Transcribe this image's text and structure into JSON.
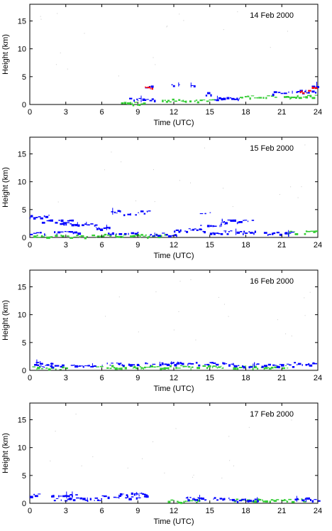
{
  "chart_data": [
    {
      "type": "scatter",
      "title": "14 Feb 2000",
      "xlabel": "Time (UTC)",
      "ylabel": "Height (km)",
      "xlim": [
        0,
        24
      ],
      "ylim": [
        0,
        18
      ],
      "xticks": [
        0,
        3,
        6,
        9,
        12,
        15,
        18,
        21,
        24
      ],
      "yticks": [
        0,
        5,
        10,
        15
      ],
      "colors": {
        "blue": "#0000ff",
        "green": "#33cc33",
        "red": "#ff0000"
      },
      "blue_segments": [
        {
          "t0": 7.8,
          "t1": 10.4,
          "h": 1.0
        },
        {
          "t0": 9.6,
          "t1": 10.3,
          "h": 3.3
        },
        {
          "t0": 11.8,
          "t1": 12.5,
          "h": 3.6
        },
        {
          "t0": 13.4,
          "t1": 13.7,
          "h": 3.5
        },
        {
          "t0": 14.6,
          "t1": 15.1,
          "h": 2.0
        },
        {
          "t0": 15.2,
          "t1": 17.5,
          "h": 1.1
        },
        {
          "t0": 20.2,
          "t1": 22.0,
          "h": 2.2
        },
        {
          "t0": 22.2,
          "t1": 23.8,
          "h": 2.4
        },
        {
          "t0": 23.5,
          "t1": 24.0,
          "h": 3.5
        }
      ],
      "green_segments": [
        {
          "t0": 7.6,
          "t1": 9.5,
          "h": 0.3
        },
        {
          "t0": 11.0,
          "t1": 15.5,
          "h": 0.8
        },
        {
          "t0": 17.5,
          "t1": 23.8,
          "h": 1.5
        }
      ],
      "red_segments": [
        {
          "t0": 9.6,
          "t1": 10.2,
          "h": 3.0
        },
        {
          "t0": 22.5,
          "t1": 23.3,
          "h": 2.4
        },
        {
          "t0": 23.5,
          "t1": 24.0,
          "h": 3.2
        }
      ]
    },
    {
      "type": "scatter",
      "title": "15 Feb 2000",
      "xlabel": "Time (UTC)",
      "ylabel": "Height (km)",
      "xlim": [
        0,
        24
      ],
      "ylim": [
        0,
        18
      ],
      "xticks": [
        0,
        3,
        6,
        9,
        12,
        15,
        18,
        21,
        24
      ],
      "yticks": [
        0,
        5,
        10,
        15
      ],
      "colors": {
        "blue": "#0000ff",
        "green": "#33cc33",
        "red": "#ff0000"
      },
      "blue_segments": [
        {
          "t0": 0.0,
          "t1": 2.0,
          "h": 3.8
        },
        {
          "t0": 1.0,
          "t1": 3.6,
          "h": 3.0
        },
        {
          "t0": 2.5,
          "t1": 5.5,
          "h": 2.5
        },
        {
          "t0": 5.5,
          "t1": 6.6,
          "h": 1.8
        },
        {
          "t0": 6.5,
          "t1": 7.6,
          "h": 4.7
        },
        {
          "t0": 7.8,
          "t1": 9.2,
          "h": 4.1
        },
        {
          "t0": 9.0,
          "t1": 10.0,
          "h": 4.6
        },
        {
          "t0": 0.0,
          "t1": 4.0,
          "h": 0.9
        },
        {
          "t0": 6.5,
          "t1": 9.0,
          "h": 0.8
        },
        {
          "t0": 10.0,
          "t1": 12.2,
          "h": 0.6
        },
        {
          "t0": 12.0,
          "t1": 14.5,
          "h": 1.4
        },
        {
          "t0": 14.0,
          "t1": 15.0,
          "h": 4.4
        },
        {
          "t0": 14.2,
          "t1": 16.3,
          "h": 2.3
        },
        {
          "t0": 16.0,
          "t1": 18.5,
          "h": 3.0
        },
        {
          "t0": 15.0,
          "t1": 19.0,
          "h": 1.0
        },
        {
          "t0": 19.5,
          "t1": 22.0,
          "h": 0.8
        }
      ],
      "green_segments": [
        {
          "t0": 0.3,
          "t1": 5.5,
          "h": 0.3
        },
        {
          "t0": 5.5,
          "t1": 11.5,
          "h": 0.4
        },
        {
          "t0": 21.5,
          "t1": 24.0,
          "h": 1.0
        }
      ],
      "red_segments": []
    },
    {
      "type": "scatter",
      "title": "16 Feb 2000",
      "xlabel": "Time (UTC)",
      "ylabel": "Height (km)",
      "xlim": [
        0,
        24
      ],
      "ylim": [
        0,
        18
      ],
      "xticks": [
        0,
        3,
        6,
        9,
        12,
        15,
        18,
        21,
        24
      ],
      "yticks": [
        0,
        5,
        10,
        15
      ],
      "colors": {
        "blue": "#0000ff",
        "green": "#33cc33",
        "red": "#ff0000"
      },
      "blue_segments": [
        {
          "t0": 0.0,
          "t1": 5.5,
          "h": 0.9
        },
        {
          "t0": 0.5,
          "t1": 2.0,
          "h": 1.4
        },
        {
          "t0": 6.0,
          "t1": 11.0,
          "h": 1.2
        },
        {
          "t0": 11.0,
          "t1": 17.0,
          "h": 1.3
        },
        {
          "t0": 17.0,
          "t1": 22.0,
          "h": 1.0
        },
        {
          "t0": 22.0,
          "t1": 24.0,
          "h": 1.3
        }
      ],
      "green_segments": [
        {
          "t0": 0.0,
          "t1": 3.0,
          "h": 0.5
        },
        {
          "t0": 5.5,
          "t1": 21.5,
          "h": 0.7
        }
      ],
      "red_segments": []
    },
    {
      "type": "scatter",
      "title": "17 Feb 2000",
      "xlabel": "Time (UTC)",
      "ylabel": "Height (km)",
      "xlim": [
        0,
        24
      ],
      "ylim": [
        0,
        18
      ],
      "xticks": [
        0,
        3,
        6,
        9,
        12,
        15,
        18,
        21,
        24
      ],
      "yticks": [
        0,
        5,
        10,
        15
      ],
      "colors": {
        "blue": "#0000ff",
        "green": "#33cc33",
        "red": "#ff0000"
      },
      "blue_segments": [
        {
          "t0": 0.0,
          "t1": 3.8,
          "h": 1.5
        },
        {
          "t0": 2.0,
          "t1": 6.0,
          "h": 0.8
        },
        {
          "t0": 6.0,
          "t1": 9.8,
          "h": 1.2
        },
        {
          "t0": 7.5,
          "t1": 9.8,
          "h": 1.7
        },
        {
          "t0": 13.0,
          "t1": 17.0,
          "h": 0.9
        },
        {
          "t0": 17.0,
          "t1": 19.0,
          "h": 0.6
        },
        {
          "t0": 22.0,
          "t1": 24.0,
          "h": 0.8
        }
      ],
      "green_segments": [
        {
          "t0": 11.5,
          "t1": 14.0,
          "h": 0.5
        },
        {
          "t0": 17.0,
          "t1": 23.0,
          "h": 0.6
        }
      ],
      "red_segments": []
    }
  ]
}
